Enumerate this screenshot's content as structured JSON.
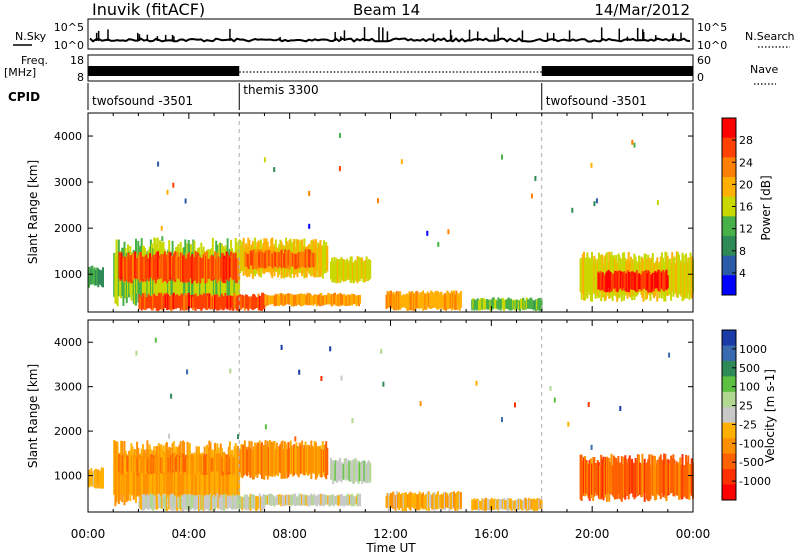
{
  "header": {
    "station": "Inuvik (fitACF)",
    "beam": "Beam 14",
    "date": "14/Mar/2012"
  },
  "nsky_panel": {
    "left_label": "N.Sky",
    "right_label": "N.Search",
    "left_ticks": [
      "10^5",
      "10^0"
    ],
    "right_ticks": [
      "10^5",
      "10^0"
    ]
  },
  "freq_panel": {
    "left_label_1": "Freq.",
    "left_label_2": "[MHz]",
    "right_label": "Nave",
    "left_ticks": [
      "18",
      "8"
    ],
    "right_ticks": [
      "60",
      "0"
    ]
  },
  "cpid_panel": {
    "label": "CPID",
    "segments": [
      {
        "name": "twofsound -3501",
        "start_hour": 0,
        "end_hour": 6
      },
      {
        "name": "themis 3300",
        "start_hour": 6,
        "end_hour": 18
      },
      {
        "name": "twofsound -3501",
        "start_hour": 18,
        "end_hour": 24
      }
    ]
  },
  "power_colorbar": {
    "label": "Power [dB]",
    "ticks": [
      "28",
      "24",
      "20",
      "16",
      "12",
      "8",
      "4"
    ],
    "colors": [
      "#ff0000",
      "#ff4000",
      "#ff8000",
      "#ffb000",
      "#c8d800",
      "#48b048",
      "#2e8b57",
      "#2a5aa8",
      "#0000ff"
    ]
  },
  "velocity_colorbar": {
    "label": "Velocity [m s-1]",
    "ticks": [
      "1000",
      "500",
      "100",
      "25",
      "-25",
      "-100",
      "-500",
      "-1000"
    ],
    "colors": [
      "#1a3aa8",
      "#3a6ab0",
      "#2e8b57",
      "#5cc040",
      "#b0d890",
      "#c8c8c8",
      "#ffb000",
      "#ff9000",
      "#ff6000",
      "#ff3000",
      "#ff0000"
    ]
  },
  "x_axis": {
    "label": "Time UT",
    "ticks": [
      "00:00",
      "04:00",
      "08:00",
      "12:00",
      "16:00",
      "20:00",
      "00:00"
    ]
  },
  "chart_data": {
    "type": "heatmap",
    "title": "Inuvik (fitACF) Beam 14 14/Mar/2012",
    "xlabel": "Time UT",
    "ylabel": "Slant Range [km]",
    "xlim_hours": [
      0,
      24
    ],
    "ylim_km": [
      180,
      4500
    ],
    "y_ticks": [
      1000,
      2000,
      3000,
      4000
    ],
    "grid": false,
    "panels": [
      {
        "name": "Power",
        "unit": "dB",
        "range": [
          0,
          30
        ],
        "regions": [
          {
            "t0": 0.0,
            "t1": 0.6,
            "r0": 700,
            "r1": 1200,
            "value": 10
          },
          {
            "t0": 1.0,
            "t1": 6.0,
            "r0": 300,
            "r1": 1800,
            "value": 14
          },
          {
            "t0": 1.2,
            "t1": 6.0,
            "r0": 800,
            "r1": 1500,
            "value": 26
          },
          {
            "t0": 2.0,
            "t1": 7.0,
            "r0": 200,
            "r1": 600,
            "value": 26
          },
          {
            "t0": 6.0,
            "t1": 9.5,
            "r0": 900,
            "r1": 1800,
            "value": 18
          },
          {
            "t0": 6.2,
            "t1": 9.0,
            "r0": 1100,
            "r1": 1550,
            "value": 24
          },
          {
            "t0": 7.0,
            "t1": 10.8,
            "r0": 300,
            "r1": 600,
            "value": 20
          },
          {
            "t0": 9.6,
            "t1": 11.2,
            "r0": 800,
            "r1": 1400,
            "value": 16
          },
          {
            "t0": 11.8,
            "t1": 14.8,
            "r0": 200,
            "r1": 650,
            "value": 20
          },
          {
            "t0": 15.2,
            "t1": 18.0,
            "r0": 200,
            "r1": 500,
            "value": 12
          },
          {
            "t0": 19.5,
            "t1": 24.0,
            "r0": 400,
            "r1": 1500,
            "value": 16
          },
          {
            "t0": 20.2,
            "t1": 23.0,
            "r0": 600,
            "r1": 1100,
            "value": 28
          }
        ]
      },
      {
        "name": "Velocity",
        "unit": "m s-1",
        "range": [
          -1000,
          1000
        ],
        "regions": [
          {
            "t0": 0.0,
            "t1": 0.6,
            "r0": 700,
            "r1": 1200,
            "value": -200
          },
          {
            "t0": 1.0,
            "t1": 6.0,
            "r0": 300,
            "r1": 1800,
            "value": -300
          },
          {
            "t0": 1.2,
            "t1": 5.8,
            "r0": 1000,
            "r1": 1500,
            "value": -400
          },
          {
            "t0": 2.0,
            "t1": 7.0,
            "r0": 200,
            "r1": 600,
            "value": 0
          },
          {
            "t0": 6.0,
            "t1": 9.5,
            "r0": 900,
            "r1": 1800,
            "value": -400
          },
          {
            "t0": 7.0,
            "t1": 10.8,
            "r0": 300,
            "r1": 600,
            "value": 20
          },
          {
            "t0": 9.6,
            "t1": 11.2,
            "r0": 800,
            "r1": 1400,
            "value": 150
          },
          {
            "t0": 11.8,
            "t1": 14.8,
            "r0": 200,
            "r1": 650,
            "value": -200
          },
          {
            "t0": 15.2,
            "t1": 18.0,
            "r0": 200,
            "r1": 500,
            "value": -150
          },
          {
            "t0": 19.5,
            "t1": 24.0,
            "r0": 400,
            "r1": 1500,
            "value": -600
          }
        ]
      }
    ]
  }
}
